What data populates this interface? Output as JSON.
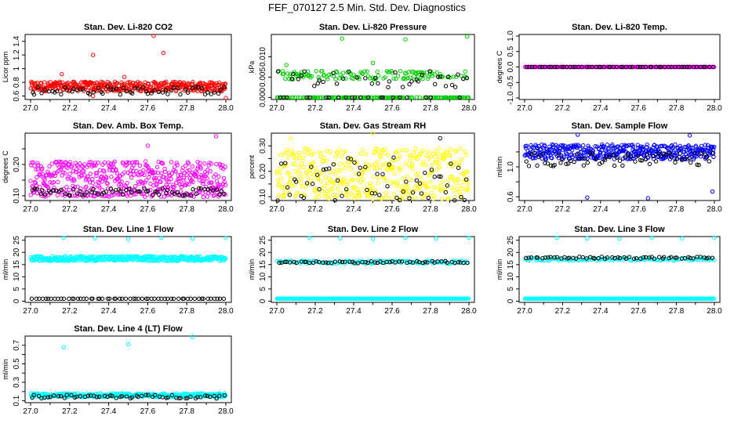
{
  "figure": {
    "title": "FEF_070127  2.5 Min. Std. Dev. Diagnostics"
  },
  "chart_data": [
    {
      "type": "scatter",
      "title": "Stan. Dev. Li-820 CO2",
      "xlabel": "",
      "ylabel": "Licor ppm",
      "xlim": [
        27.0,
        28.0
      ],
      "ylim": [
        0.55,
        1.5
      ],
      "xticks": [
        "27.0",
        "27.2",
        "27.4",
        "27.6",
        "27.8",
        "28.0"
      ],
      "yticks": [
        0.6,
        0.8,
        1.0,
        1.2,
        1.4
      ],
      "series": [
        {
          "color": "#ff0000",
          "base": 0.74,
          "jitter": 0.07,
          "n": 400,
          "outliers": [
            [
              27.16,
              0.92
            ],
            [
              27.32,
              1.2
            ],
            [
              27.63,
              1.48
            ],
            [
              27.68,
              1.23
            ],
            [
              27.48,
              0.88
            ],
            [
              27.32,
              0.6
            ],
            [
              28.0,
              0.57
            ]
          ]
        },
        {
          "color": "#000000",
          "base": 0.68,
          "jitter": 0.06,
          "n": 60,
          "outliers": []
        }
      ]
    },
    {
      "type": "scatter",
      "title": "Stan. Dev. Li-820 Pressure",
      "xlabel": "",
      "ylabel": "kPa",
      "xlim": [
        27.0,
        28.0
      ],
      "ylim": [
        -0.0005,
        0.0155
      ],
      "xticks": [
        "27.0",
        "27.2",
        "27.4",
        "27.6",
        "27.8",
        "28.0"
      ],
      "yticks": [
        0.0,
        0.005,
        0.01
      ],
      "ytick_labels": [
        "0.000",
        "0.005",
        "0.010"
      ],
      "series": [
        {
          "color": "#00cc00",
          "base": 0.004,
          "jitter": 0.0022,
          "n": 260,
          "levels": [
            0.0,
            0.0055
          ],
          "outliers": [
            [
              27.34,
              0.0145
            ],
            [
              27.67,
              0.0143
            ],
            [
              27.99,
              0.015
            ],
            [
              27.5,
              0.0085
            ],
            [
              27.05,
              0.008
            ]
          ]
        },
        {
          "color": "#000000",
          "base": 0.003,
          "jitter": 0.002,
          "n": 60,
          "levels": [
            0.0,
            0.0035,
            0.0055
          ],
          "outliers": []
        }
      ]
    },
    {
      "type": "scatter",
      "title": "Stan. Dev. Li-820 Temp.",
      "xlabel": "",
      "ylabel": "degrees C",
      "xlim": [
        27.0,
        28.0
      ],
      "ylim": [
        -1.05,
        1.05
      ],
      "xticks": [
        "27.0",
        "27.2",
        "27.4",
        "27.6",
        "27.8",
        "28.0"
      ],
      "yticks": [
        -1.0,
        -0.5,
        0.0,
        0.5,
        1.0
      ],
      "ytick_labels": [
        "-1.0",
        "-0.5",
        "0.0",
        "0.5",
        "1.0"
      ],
      "series": [
        {
          "color": "#ff00ff",
          "base": 0.0,
          "jitter": 0.0,
          "n": 240,
          "outliers": []
        },
        {
          "color": "#000000",
          "base": 0.0,
          "jitter": 0.0,
          "n": 60,
          "outliers": []
        }
      ]
    },
    {
      "type": "scatter",
      "title": "Stan. Dev. Amb. Box Temp.",
      "xlabel": "",
      "ylabel": "degrees C",
      "xlim": [
        27.0,
        28.0
      ],
      "ylim": [
        0.085,
        0.3
      ],
      "xticks": [
        "27.0",
        "27.2",
        "27.4",
        "27.6",
        "27.8",
        "28.0"
      ],
      "yticks": [
        0.1,
        0.15,
        0.2,
        0.25
      ],
      "ytick_labels": [
        "0.10",
        "",
        "0.20",
        ""
      ],
      "series": [
        {
          "color": "#ff00ff",
          "base": 0.165,
          "jitter": 0.045,
          "n": 380,
          "outliers": [
            [
              27.95,
              0.29
            ],
            [
              27.6,
              0.26
            ]
          ]
        },
        {
          "color": "#ff00ff",
          "base": 0.108,
          "jitter": 0.012,
          "n": 120,
          "outliers": []
        },
        {
          "color": "#000000",
          "base": 0.112,
          "jitter": 0.012,
          "n": 70,
          "outliers": []
        }
      ]
    },
    {
      "type": "scatter",
      "title": "Stan. Dev. Gas Stream RH",
      "xlabel": "",
      "ylabel": "percent",
      "xlim": [
        27.0,
        28.0
      ],
      "ylim": [
        0.085,
        0.35
      ],
      "xticks": [
        "27.0",
        "27.2",
        "27.4",
        "27.6",
        "27.8",
        "28.0"
      ],
      "yticks": [
        0.1,
        0.15,
        0.2,
        0.25,
        0.3
      ],
      "ytick_labels": [
        "0.10",
        "",
        "0.20",
        "",
        "0.30"
      ],
      "series": [
        {
          "color": "#ffff00",
          "base": 0.19,
          "jitter": 0.1,
          "n": 420,
          "outliers": [
            [
              27.5,
              0.35
            ],
            [
              27.07,
              0.33
            ]
          ]
        },
        {
          "color": "#000000",
          "base": 0.17,
          "jitter": 0.09,
          "n": 60,
          "outliers": [
            [
              27.85,
              0.33
            ]
          ]
        }
      ]
    },
    {
      "type": "scatter",
      "title": "Stan. Dev. Sample Flow",
      "xlabel": "",
      "ylabel": "ml/min",
      "xlim": [
        27.0,
        28.0
      ],
      "ylim": [
        0.55,
        1.45
      ],
      "xticks": [
        "27.0",
        "27.2",
        "27.4",
        "27.6",
        "27.8",
        "28.0"
      ],
      "yticks": [
        0.6,
        0.8,
        1.0,
        1.2
      ],
      "ytick_labels": [
        "0.6",
        "",
        "1.0",
        ""
      ],
      "series": [
        {
          "color": "#0000ff",
          "base": 1.2,
          "jitter": 0.1,
          "n": 420,
          "outliers": [
            [
              27.33,
              0.59
            ],
            [
              27.65,
              0.58
            ],
            [
              27.99,
              0.67
            ],
            [
              27.28,
              1.43
            ],
            [
              27.87,
              1.42
            ]
          ]
        },
        {
          "color": "#000000",
          "base": 1.1,
          "jitter": 0.09,
          "n": 70,
          "outliers": []
        }
      ]
    },
    {
      "type": "scatter",
      "title": "Stan. Dev. Line 1 Flow",
      "xlabel": "",
      "ylabel": "ml/min",
      "xlim": [
        27.0,
        28.0
      ],
      "ylim": [
        -0.5,
        26.5
      ],
      "xticks": [
        "27.0",
        "27.2",
        "27.4",
        "27.6",
        "27.8",
        "28.0"
      ],
      "yticks": [
        0,
        5,
        10,
        15,
        20,
        25
      ],
      "series": [
        {
          "color": "#00ffff",
          "base": 17.5,
          "jitter": 1.0,
          "n": 400,
          "outliers": [
            [
              27.17,
              26
            ],
            [
              27.33,
              25.8
            ],
            [
              27.5,
              25.6
            ],
            [
              27.67,
              26
            ],
            [
              27.83,
              25.7
            ],
            [
              28.0,
              26
            ]
          ]
        },
        {
          "color": "#000000",
          "base": 1.0,
          "jitter": 0.0,
          "n": 60,
          "outliers": []
        }
      ]
    },
    {
      "type": "scatter",
      "title": "Stan. Dev. Line 2 Flow",
      "xlabel": "",
      "ylabel": "ml/min",
      "xlim": [
        27.0,
        28.0
      ],
      "ylim": [
        -0.5,
        26.5
      ],
      "xticks": [
        "27.0",
        "27.2",
        "27.4",
        "27.6",
        "27.8",
        "28.0"
      ],
      "yticks": [
        0,
        5,
        10,
        15,
        20,
        25
      ],
      "series": [
        {
          "color": "#00ffff",
          "base": 1.0,
          "jitter": 0.0,
          "n": 300,
          "outliers": [
            [
              27.17,
              26
            ],
            [
              27.33,
              25.8
            ],
            [
              27.5,
              25.6
            ],
            [
              27.67,
              26
            ],
            [
              27.83,
              25.7
            ],
            [
              28.0,
              26
            ]
          ]
        },
        {
          "color": "#00ffff",
          "base": 16.0,
          "jitter": 0.6,
          "n": 120,
          "outliers": []
        },
        {
          "color": "#000000",
          "base": 16.0,
          "jitter": 0.4,
          "n": 60,
          "outliers": []
        }
      ]
    },
    {
      "type": "scatter",
      "title": "Stan. Dev. Line 3 Flow",
      "xlabel": "",
      "ylabel": "ml/min",
      "xlim": [
        27.0,
        28.0
      ],
      "ylim": [
        -0.5,
        26.5
      ],
      "xticks": [
        "27.0",
        "27.2",
        "27.4",
        "27.6",
        "27.8",
        "28.0"
      ],
      "yticks": [
        0,
        5,
        10,
        15,
        20,
        25
      ],
      "series": [
        {
          "color": "#00ffff",
          "base": 1.0,
          "jitter": 0.0,
          "n": 300,
          "outliers": [
            [
              27.17,
              26
            ],
            [
              27.33,
              25.8
            ],
            [
              27.5,
              25.6
            ],
            [
              27.67,
              26
            ],
            [
              27.83,
              25.7
            ],
            [
              28.0,
              26
            ]
          ]
        },
        {
          "color": "#00ffff",
          "base": 17.2,
          "jitter": 0.5,
          "n": 120,
          "outliers": []
        },
        {
          "color": "#000000",
          "base": 17.8,
          "jitter": 0.4,
          "n": 60,
          "outliers": []
        }
      ]
    },
    {
      "type": "scatter",
      "title": "Stan. Dev. Line 4 (LT) Flow",
      "xlabel": "",
      "ylabel": "ml/min",
      "xlim": [
        27.0,
        28.0
      ],
      "ylim": [
        0.08,
        0.8
      ],
      "xticks": [
        "27.0",
        "27.2",
        "27.4",
        "27.6",
        "27.8",
        "28.0"
      ],
      "yticks": [
        0.1,
        0.2,
        0.3,
        0.4,
        0.5,
        0.6,
        0.7
      ],
      "ytick_labels": [
        "0.1",
        "",
        "0.3",
        "",
        "0.5",
        "",
        "0.7"
      ],
      "series": [
        {
          "color": "#00ffff",
          "base": 0.16,
          "jitter": 0.02,
          "n": 380,
          "outliers": [
            [
              27.17,
              0.68
            ],
            [
              27.5,
              0.71
            ],
            [
              27.83,
              0.79
            ]
          ]
        },
        {
          "color": "#000000",
          "base": 0.145,
          "jitter": 0.02,
          "n": 60,
          "outliers": []
        }
      ]
    }
  ]
}
